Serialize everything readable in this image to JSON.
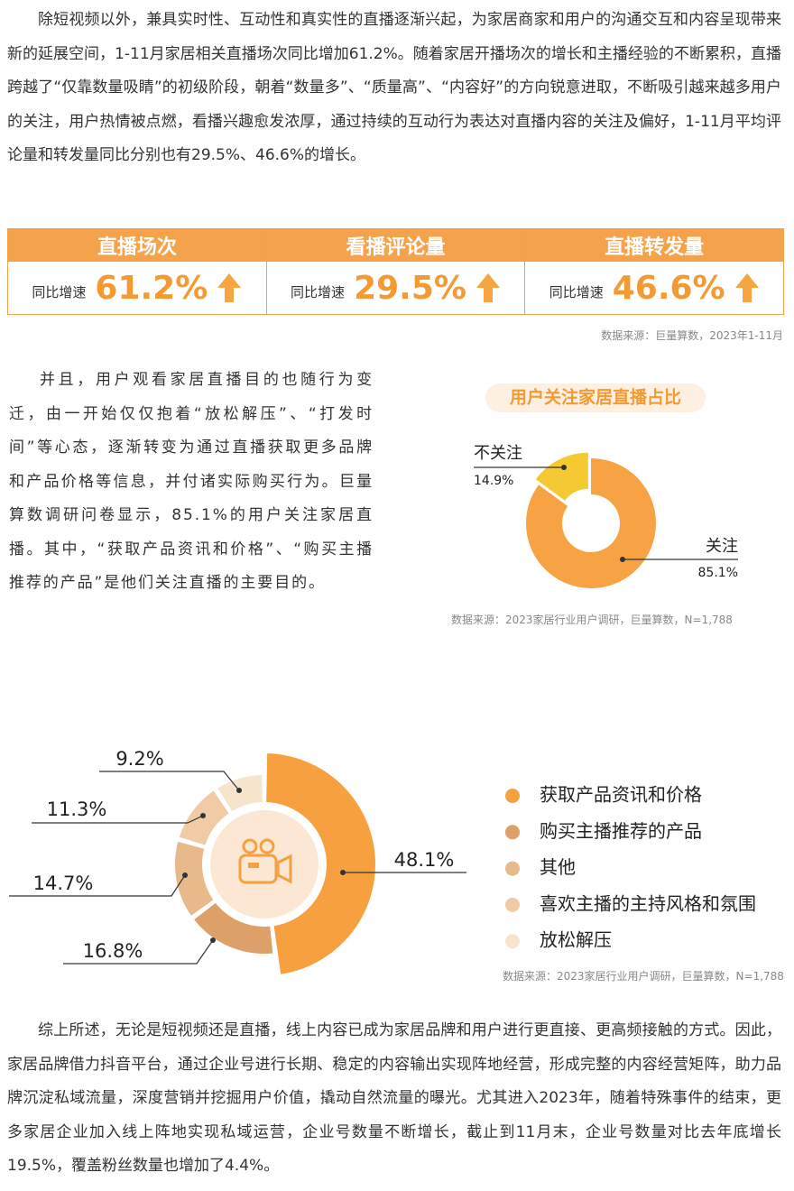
{
  "paragraphs": [
    "除短视频以外，兼具实时性、互动性和真实性的直播逐渐兴起，为家居商家和用户的沟通交互和内容呈现带来新的延展空间，1-11月家居相关直播场次同比增加61.2%。随着家居开播场次的增长和主播经验的不断累积，直播跨越了“仅靠数量吸睛”的初级阶段，朝着“数量多”、“质量高”、“内容好”的方向锐意进取，不断吸引越来越多用户的关注，用户热情被点燃，看播兴趣愈发浓厚，通过持续的互动行为表达对直播内容的关注及偏好，1-11月平均评论量和转发量同比分别也有29.5%、46.6%的增长。",
    "并且，用户观看家居直播目的也随行为变迁，由一开始仅仅抱着“放松解压”、“打发时间”等心态，逐渐转变为通过直播获取更多品牌和产品价格等信息，并付诸实际购买行为。巨量算数调研问卷显示，85.1%的用户关注家居直播。其中，“获取产品资讯和价格”、“购买主播推荐的产品”是他们关注直播的主要目的。",
    "综上所述，无论是短视频还是直播，线上内容已成为家居品牌和用户进行更直接、更高频接触的方式。因此，家居品牌借力抖音平台，通过企业号进行长期、稳定的内容输出实现阵地经营，形成完整的内容经营矩阵，助力品牌沉淀私域流量，深度营销并挖掘用户价值，撬动自然流量的曝光。尤其进入2023年，随着特殊事件的结束，更多家居企业加入线上阵地实现私域运营，企业号数量不断增长，截止到11月末，企业号数量对比去年底增长19.5%，覆盖粉丝数量也增加了4.4%。"
  ],
  "stats": {
    "items": [
      {
        "title": "直播场次",
        "label": "同比增速",
        "value": "61.2%"
      },
      {
        "title": "看播评论量",
        "label": "同比增速",
        "value": "29.5%"
      },
      {
        "title": "直播转发量",
        "label": "同比增速",
        "value": "46.6%"
      }
    ],
    "source": "数据来源：巨量算数，2023年1-11月"
  },
  "chart_data": [
    {
      "type": "pie",
      "title": "用户关注家居直播占比",
      "categories": [
        "关注",
        "不关注"
      ],
      "values": [
        85.1,
        14.9
      ],
      "value_labels": [
        "85.1%",
        "14.9%"
      ],
      "colors": [
        "#f7a343",
        "#f5c931"
      ],
      "source": "数据来源：2023家居行业用户调研，巨量算数，N=1,788"
    },
    {
      "type": "pie",
      "categories": [
        "获取产品资讯和价格",
        "购买主播推荐的产品",
        "其他",
        "喜欢主播的主持风格和氛围",
        "放松解压"
      ],
      "values": [
        48.1,
        16.8,
        14.7,
        11.3,
        9.2
      ],
      "value_labels": [
        "48.1%",
        "16.8%",
        "14.7%",
        "11.3%",
        "9.2%"
      ],
      "colors": [
        "#f6a040",
        "#dda068",
        "#e8b98a",
        "#f0cba5",
        "#f7e4cd"
      ],
      "legend": "right",
      "source": "数据来源：2023家居行业用户调研，巨量算数，N=1,788"
    }
  ]
}
